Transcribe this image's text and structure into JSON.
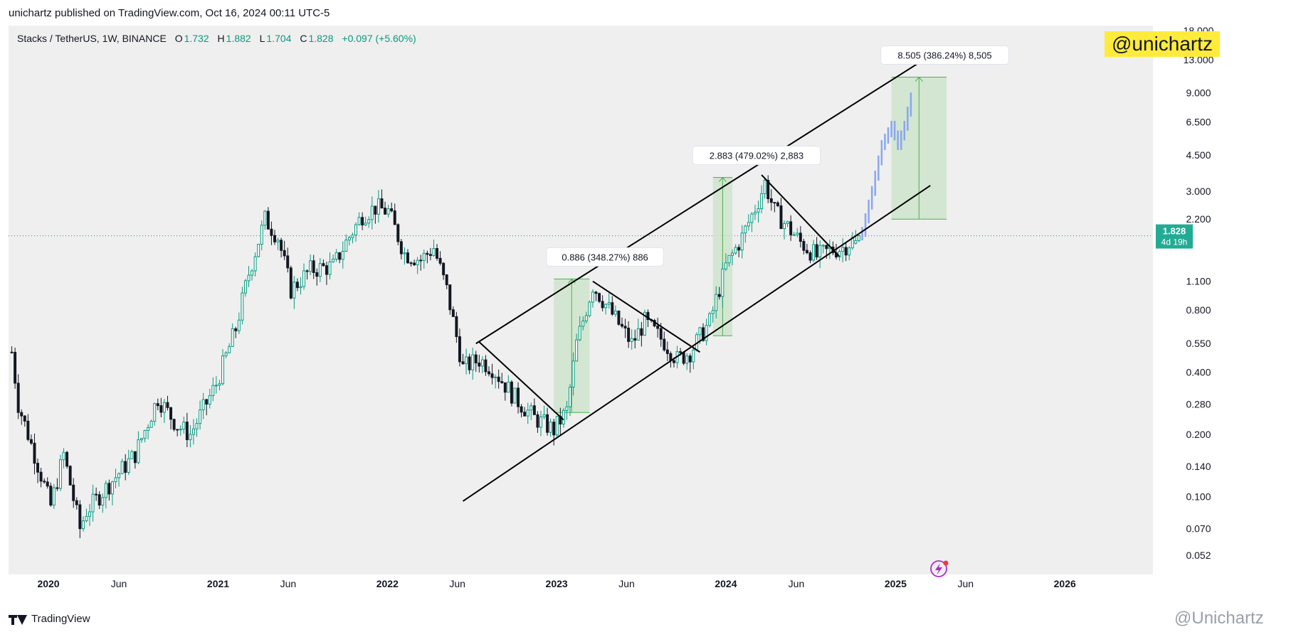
{
  "publish_line": "unichartz published on TradingView.com, Oct 16, 2024 00:11 UTC-5",
  "symbol": {
    "name": "Stacks / TetherUS, 1W, BINANCE",
    "open_label": "O",
    "open": "1.732",
    "high_label": "H",
    "high": "1.882",
    "low_label": "L",
    "low": "1.704",
    "close_label": "C",
    "close": "1.828",
    "change": "+0.097 (+5.60%)"
  },
  "watermark": "@unichartz",
  "footer": {
    "brand": "TradingView",
    "handle": "@Unichartz"
  },
  "price_tag": {
    "price": "1.828",
    "countdown": "4d 19h"
  },
  "colors": {
    "up": "#089981",
    "down": "#131722",
    "projection": "#8aa6ee",
    "measure_fill": "#c9e3c7",
    "measure_line": "#4caf50",
    "badge": "#22ab94",
    "watermark_bg": "#ffeb3b"
  },
  "chart_data": {
    "type": "candlestick",
    "yscale": "log",
    "ylim": [
      0.042,
      19.0
    ],
    "xlim": [
      "2019-10-07",
      "2026-07-10"
    ],
    "y_ticks": [
      "18.000",
      "13.000",
      "9.000",
      "6.500",
      "4.500",
      "3.000",
      "2.200",
      "1.100",
      "0.800",
      "0.550",
      "0.400",
      "0.280",
      "0.200",
      "0.140",
      "0.100",
      "0.070",
      "0.052"
    ],
    "x_ticks": [
      {
        "label": "2020",
        "date": "2020-01-01"
      },
      {
        "label": "Jun",
        "date": "2020-06-01"
      },
      {
        "label": "2021",
        "date": "2021-01-01"
      },
      {
        "label": "Jun",
        "date": "2021-06-01"
      },
      {
        "label": "2022",
        "date": "2022-01-01"
      },
      {
        "label": "Jun",
        "date": "2022-06-01"
      },
      {
        "label": "2023",
        "date": "2023-01-01"
      },
      {
        "label": "Jun",
        "date": "2023-06-01"
      },
      {
        "label": "2024",
        "date": "2024-01-01"
      },
      {
        "label": "Jun",
        "date": "2024-06-01"
      },
      {
        "label": "2025",
        "date": "2025-01-01"
      },
      {
        "label": "Jun",
        "date": "2025-06-01"
      },
      {
        "label": "2026",
        "date": "2026-01-01"
      }
    ],
    "current_price": 1.828,
    "price_anchors": [
      [
        "2019-10-14",
        0.5
      ],
      [
        "2019-10-28",
        0.28
      ],
      [
        "2019-12-02",
        0.16
      ],
      [
        "2020-01-06",
        0.09
      ],
      [
        "2020-02-03",
        0.16
      ],
      [
        "2020-03-09",
        0.07
      ],
      [
        "2020-03-23",
        0.085
      ],
      [
        "2020-05-04",
        0.11
      ],
      [
        "2020-07-06",
        0.16
      ],
      [
        "2020-08-24",
        0.3
      ],
      [
        "2020-10-05",
        0.22
      ],
      [
        "2020-11-02",
        0.2
      ],
      [
        "2020-12-28",
        0.35
      ],
      [
        "2021-02-08",
        0.65
      ],
      [
        "2021-03-08",
        1.2
      ],
      [
        "2021-04-12",
        2.2
      ],
      [
        "2021-05-10",
        1.8
      ],
      [
        "2021-06-07",
        1.0
      ],
      [
        "2021-07-19",
        1.25
      ],
      [
        "2021-09-06",
        1.3
      ],
      [
        "2021-10-04",
        1.7
      ],
      [
        "2021-11-08",
        2.3
      ],
      [
        "2021-12-06",
        2.5
      ],
      [
        "2022-01-03",
        2.4
      ],
      [
        "2022-02-07",
        1.5
      ],
      [
        "2022-03-14",
        1.4
      ],
      [
        "2022-04-11",
        1.6
      ],
      [
        "2022-05-09",
        1.0
      ],
      [
        "2022-06-13",
        0.42
      ],
      [
        "2022-07-18",
        0.46
      ],
      [
        "2022-08-15",
        0.42
      ],
      [
        "2022-10-03",
        0.3
      ],
      [
        "2022-11-14",
        0.24
      ],
      [
        "2022-12-26",
        0.21
      ],
      [
        "2023-01-23",
        0.26
      ],
      [
        "2023-02-13",
        0.55
      ],
      [
        "2023-03-20",
        1.05
      ],
      [
        "2023-04-17",
        0.85
      ],
      [
        "2023-06-12",
        0.55
      ],
      [
        "2023-07-10",
        0.7
      ],
      [
        "2023-08-21",
        0.56
      ],
      [
        "2023-09-18",
        0.46
      ],
      [
        "2023-10-16",
        0.5
      ],
      [
        "2023-11-27",
        0.7
      ],
      [
        "2024-01-01",
        1.3
      ],
      [
        "2024-02-05",
        1.8
      ],
      [
        "2024-03-11",
        2.7
      ],
      [
        "2024-03-25",
        3.3
      ],
      [
        "2024-04-15",
        2.4
      ],
      [
        "2024-06-10",
        1.7
      ],
      [
        "2024-07-15",
        1.45
      ],
      [
        "2024-08-12",
        1.55
      ],
      [
        "2024-09-09",
        1.6
      ],
      [
        "2024-10-14",
        1.828
      ]
    ],
    "candles": [
      [
        "2024-10-07",
        1.68,
        1.95,
        1.66,
        1.732
      ],
      [
        "2024-10-14",
        1.732,
        1.882,
        1.704,
        1.828
      ]
    ],
    "projection_path": [
      [
        "2024-10-21",
        1.9
      ],
      [
        "2024-11-11",
        3.0
      ],
      [
        "2024-12-02",
        5.0
      ],
      [
        "2024-12-23",
        6.2
      ],
      [
        "2025-01-06",
        5.0
      ],
      [
        "2025-01-20",
        6.2
      ],
      [
        "2025-02-03",
        8.505
      ]
    ],
    "channel_upper": [
      [
        "2022-07-11",
        0.55
      ],
      [
        "2025-03-03",
        13.0
      ]
    ],
    "channel_lower": [
      [
        "2022-06-13",
        0.095
      ],
      [
        "2025-03-17",
        3.2
      ]
    ],
    "wedges": [
      [
        [
          "2022-07-18",
          0.56
        ],
        [
          "2023-01-16",
          0.235
        ]
      ],
      [
        [
          "2023-03-20",
          1.1
        ],
        [
          "2023-11-06",
          0.5
        ]
      ],
      [
        [
          "2024-03-18",
          3.6
        ],
        [
          "2024-09-02",
          1.45
        ]
      ]
    ],
    "measurements": [
      {
        "start_date": "2022-12-26",
        "end_date": "2023-03-13",
        "low": 0.255,
        "high": 1.13,
        "label": "0.886 (348.27%) 886",
        "label_at": "2023-01-16"
      },
      {
        "start_date": "2023-12-04",
        "end_date": "2024-01-15",
        "low": 0.6,
        "high": 3.5,
        "label": "2.883 (479.02%) 2,883",
        "label_at": "2023-11-27"
      },
      {
        "start_date": "2024-12-23",
        "end_date": "2025-04-21",
        "low": 2.2,
        "high": 10.7,
        "label": "8.505 (386.24%) 8,505",
        "label_at": "2025-01-06"
      }
    ]
  }
}
